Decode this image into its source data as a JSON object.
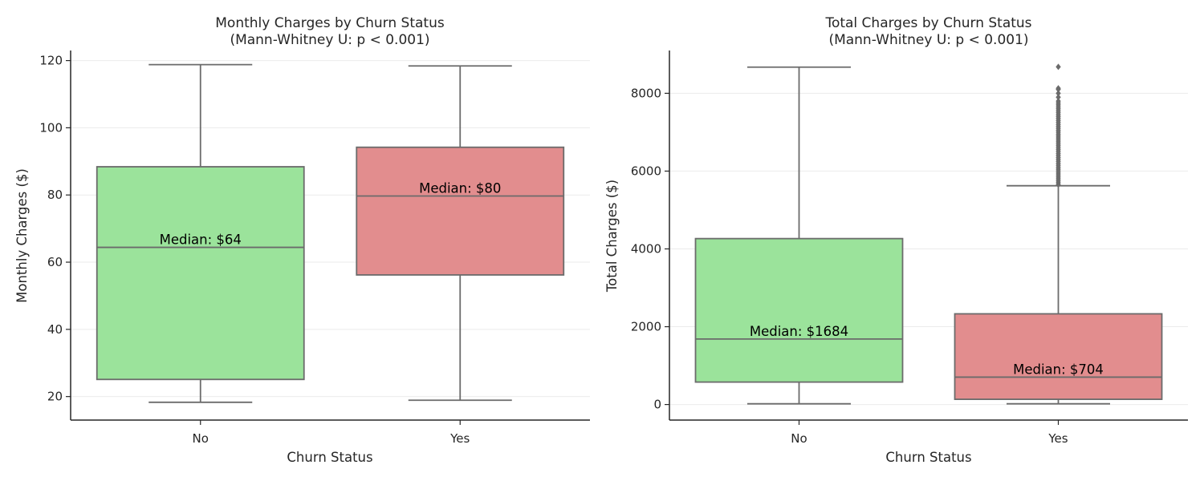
{
  "colors": {
    "no_box": "#9be39b",
    "yes_box": "#e28d8e",
    "line": "#6b6b6b",
    "axis": "#262626",
    "grid": "#ebebeb",
    "text": "#262626"
  },
  "chart_data": [
    {
      "type": "box",
      "title_line1": "Monthly Charges by Churn Status",
      "title_line2": "(Mann-Whitney U: p < 0.001)",
      "xlabel": "Churn Status",
      "ylabel": "Monthly Charges ($)",
      "ylim": [
        13,
        123
      ],
      "yticks": [
        20,
        40,
        60,
        80,
        100,
        120
      ],
      "grid": true,
      "categories": [
        "No",
        "Yes"
      ],
      "boxes": [
        {
          "category": "No",
          "whisker_low": 18.3,
          "q1": 25.1,
          "median": 64.4,
          "q3": 88.4,
          "whisker_high": 118.8,
          "median_label": "Median: $64",
          "outliers": []
        },
        {
          "category": "Yes",
          "whisker_low": 18.9,
          "q1": 56.2,
          "median": 79.7,
          "q3": 94.2,
          "whisker_high": 118.4,
          "median_label": "Median: $80",
          "outliers": []
        }
      ]
    },
    {
      "type": "box",
      "title_line1": "Total Charges by Churn Status",
      "title_line2": "(Mann-Whitney U: p < 0.001)",
      "xlabel": "Churn Status",
      "ylabel": "Total Charges ($)",
      "ylim": [
        -400,
        9100
      ],
      "yticks": [
        0,
        2000,
        4000,
        6000,
        8000
      ],
      "grid": true,
      "categories": [
        "No",
        "Yes"
      ],
      "boxes": [
        {
          "category": "No",
          "whisker_low": 19,
          "q1": 577,
          "median": 1684,
          "q3": 4265,
          "whisker_high": 8672,
          "median_label": "Median: $1684",
          "outliers": []
        },
        {
          "category": "Yes",
          "whisker_low": 19,
          "q1": 134,
          "median": 704,
          "q3": 2331,
          "whisker_high": 5624,
          "median_label": "Median: $704",
          "outliers": [
            5650,
            5700,
            5750,
            5800,
            5850,
            5900,
            5950,
            6000,
            6050,
            6100,
            6150,
            6200,
            6250,
            6300,
            6350,
            6400,
            6450,
            6500,
            6550,
            6600,
            6650,
            6700,
            6750,
            6800,
            6850,
            6900,
            6950,
            7000,
            7050,
            7100,
            7150,
            7200,
            7250,
            7300,
            7350,
            7400,
            7450,
            7500,
            7550,
            7600,
            7650,
            7700,
            7750,
            7800,
            7900,
            8000,
            8100,
            8130,
            8680
          ]
        }
      ]
    }
  ]
}
